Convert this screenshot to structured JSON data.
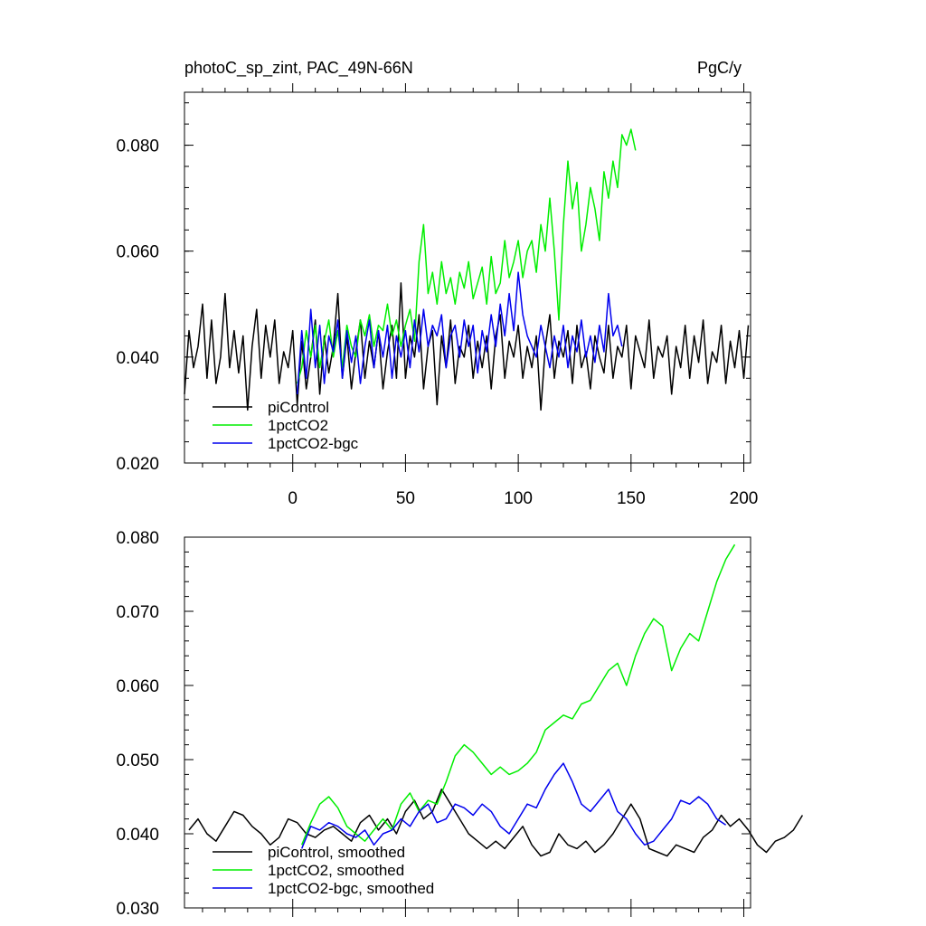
{
  "header": {
    "title": "photoC_sp_zint, PAC_49N-66N",
    "units": "PgC/y"
  },
  "chart_data": [
    {
      "type": "line",
      "panel": "top",
      "title": "photoC_sp_zint, PAC_49N-66N",
      "units": "PgC/y",
      "xlabel": "",
      "ylabel": "",
      "xlim": [
        -48,
        203
      ],
      "ylim": [
        0.02,
        0.09
      ],
      "x_ticks": [
        0,
        50,
        100,
        150,
        200
      ],
      "x_tick_labels": [
        "0",
        "50",
        "100",
        "150",
        "200"
      ],
      "y_ticks": [
        0.02,
        0.04,
        0.06,
        0.08
      ],
      "y_tick_labels": [
        "0.020",
        "0.040",
        "0.060",
        "0.080"
      ],
      "legend_position": "bottom-left",
      "grid": false,
      "series": [
        {
          "name": "piControl",
          "color": "#000000",
          "x_start": -48,
          "x_step": 2,
          "values": [
            0.033,
            0.045,
            0.038,
            0.042,
            0.05,
            0.036,
            0.047,
            0.035,
            0.04,
            0.052,
            0.038,
            0.045,
            0.037,
            0.044,
            0.03,
            0.042,
            0.049,
            0.036,
            0.046,
            0.04,
            0.047,
            0.035,
            0.041,
            0.038,
            0.045,
            0.031,
            0.043,
            0.034,
            0.04,
            0.047,
            0.033,
            0.044,
            0.037,
            0.042,
            0.052,
            0.036,
            0.044,
            0.034,
            0.041,
            0.047,
            0.036,
            0.043,
            0.038,
            0.045,
            0.034,
            0.041,
            0.046,
            0.036,
            0.054,
            0.036,
            0.044,
            0.04,
            0.048,
            0.034,
            0.042,
            0.045,
            0.031,
            0.044,
            0.038,
            0.047,
            0.035,
            0.042,
            0.04,
            0.046,
            0.036,
            0.043,
            0.038,
            0.044,
            0.034,
            0.044,
            0.048,
            0.036,
            0.043,
            0.04,
            0.046,
            0.036,
            0.042,
            0.038,
            0.044,
            0.03,
            0.042,
            0.048,
            0.036,
            0.043,
            0.04,
            0.045,
            0.035,
            0.046,
            0.038,
            0.041,
            0.034,
            0.044,
            0.04,
            0.037,
            0.046,
            0.036,
            0.042,
            0.04,
            0.046,
            0.034,
            0.044,
            0.041,
            0.038,
            0.047,
            0.036,
            0.042,
            0.04,
            0.044,
            0.033,
            0.042,
            0.038,
            0.046,
            0.036,
            0.044,
            0.039,
            0.047,
            0.035,
            0.041,
            0.039,
            0.046,
            0.035,
            0.043,
            0.038,
            0.045,
            0.036,
            0.046
          ]
        },
        {
          "name": "1pctCO2",
          "color": "#00ee00",
          "x_start": 2,
          "x_step": 2,
          "values": [
            0.035,
            0.038,
            0.045,
            0.04,
            0.046,
            0.038,
            0.043,
            0.047,
            0.04,
            0.045,
            0.038,
            0.046,
            0.042,
            0.04,
            0.047,
            0.044,
            0.048,
            0.042,
            0.046,
            0.045,
            0.05,
            0.044,
            0.047,
            0.042,
            0.046,
            0.049,
            0.043,
            0.058,
            0.065,
            0.052,
            0.056,
            0.05,
            0.058,
            0.052,
            0.055,
            0.05,
            0.056,
            0.053,
            0.058,
            0.051,
            0.054,
            0.057,
            0.05,
            0.059,
            0.052,
            0.054,
            0.062,
            0.055,
            0.058,
            0.062,
            0.055,
            0.06,
            0.062,
            0.056,
            0.065,
            0.06,
            0.07,
            0.06,
            0.047,
            0.065,
            0.077,
            0.068,
            0.073,
            0.06,
            0.065,
            0.072,
            0.068,
            0.062,
            0.075,
            0.07,
            0.077,
            0.072,
            0.082,
            0.08,
            0.083,
            0.079
          ]
        },
        {
          "name": "1pctCO2-bgc",
          "color": "#0000ee",
          "x_start": 2,
          "x_step": 2,
          "values": [
            0.033,
            0.045,
            0.036,
            0.049,
            0.038,
            0.046,
            0.035,
            0.044,
            0.041,
            0.047,
            0.036,
            0.045,
            0.039,
            0.044,
            0.035,
            0.042,
            0.047,
            0.038,
            0.045,
            0.04,
            0.046,
            0.036,
            0.044,
            0.04,
            0.045,
            0.038,
            0.047,
            0.041,
            0.049,
            0.042,
            0.046,
            0.044,
            0.048,
            0.038,
            0.044,
            0.046,
            0.04,
            0.047,
            0.042,
            0.046,
            0.037,
            0.045,
            0.041,
            0.048,
            0.042,
            0.05,
            0.044,
            0.052,
            0.045,
            0.056,
            0.048,
            0.044,
            0.042,
            0.04,
            0.046,
            0.042,
            0.038,
            0.044,
            0.04,
            0.046,
            0.038,
            0.044,
            0.041,
            0.047,
            0.04,
            0.044,
            0.039,
            0.046,
            0.041,
            0.052,
            0.044,
            0.046,
            0.042
          ]
        }
      ]
    },
    {
      "type": "line",
      "panel": "bottom",
      "title": "",
      "xlabel": "",
      "ylabel": "",
      "xlim": [
        -48,
        203
      ],
      "ylim": [
        0.03,
        0.08
      ],
      "x_ticks": [
        0,
        50,
        100,
        150,
        200
      ],
      "y_ticks": [
        0.03,
        0.04,
        0.05,
        0.06,
        0.07,
        0.08
      ],
      "y_tick_labels": [
        "0.030",
        "0.040",
        "0.050",
        "0.060",
        "0.070",
        "0.080"
      ],
      "legend_position": "bottom-left",
      "grid": false,
      "series": [
        {
          "name": "piControl, smoothed",
          "color": "#000000",
          "x_start": -46,
          "x_step": 4,
          "values": [
            0.0405,
            0.042,
            0.04,
            0.039,
            0.041,
            0.043,
            0.0425,
            0.041,
            0.04,
            0.0385,
            0.0395,
            0.042,
            0.0415,
            0.04,
            0.0395,
            0.0405,
            0.041,
            0.04,
            0.039,
            0.0415,
            0.0425,
            0.0405,
            0.042,
            0.04,
            0.043,
            0.0445,
            0.042,
            0.043,
            0.046,
            0.044,
            0.042,
            0.04,
            0.039,
            0.038,
            0.039,
            0.038,
            0.0395,
            0.041,
            0.0385,
            0.037,
            0.0375,
            0.04,
            0.0385,
            0.038,
            0.039,
            0.0375,
            0.0385,
            0.04,
            0.042,
            0.044,
            0.042,
            0.038,
            0.0375,
            0.037,
            0.0385,
            0.038,
            0.0375,
            0.0395,
            0.0405,
            0.0425,
            0.041,
            0.042,
            0.0405,
            0.0385,
            0.0375,
            0.039,
            0.0395,
            0.0405,
            0.0425
          ]
        },
        {
          "name": "1pctCO2, smoothed",
          "color": "#00ee00",
          "x_start": 4,
          "x_step": 4,
          "values": [
            0.0385,
            0.0415,
            0.044,
            0.045,
            0.0435,
            0.041,
            0.04,
            0.039,
            0.0405,
            0.042,
            0.0405,
            0.044,
            0.0455,
            0.043,
            0.0445,
            0.044,
            0.047,
            0.0505,
            0.052,
            0.051,
            0.0495,
            0.048,
            0.049,
            0.048,
            0.0485,
            0.0495,
            0.051,
            0.054,
            0.055,
            0.056,
            0.0555,
            0.0575,
            0.058,
            0.06,
            0.062,
            0.063,
            0.06,
            0.064,
            0.067,
            0.069,
            0.068,
            0.062,
            0.065,
            0.067,
            0.066,
            0.07,
            0.074,
            0.077,
            0.079
          ]
        },
        {
          "name": "1pctCO2-bgc, smoothed",
          "color": "#0000ee",
          "x_start": 4,
          "x_step": 4,
          "values": [
            0.038,
            0.041,
            0.0405,
            0.0415,
            0.041,
            0.04,
            0.0395,
            0.0405,
            0.0385,
            0.04,
            0.0405,
            0.042,
            0.041,
            0.043,
            0.044,
            0.0415,
            0.042,
            0.044,
            0.0435,
            0.0425,
            0.044,
            0.043,
            0.041,
            0.04,
            0.042,
            0.044,
            0.0435,
            0.046,
            0.048,
            0.0495,
            0.047,
            0.044,
            0.043,
            0.0445,
            0.046,
            0.043,
            0.042,
            0.04,
            0.0385,
            0.039,
            0.0405,
            0.042,
            0.0445,
            0.044,
            0.045,
            0.044,
            0.042,
            0.0412
          ]
        }
      ]
    }
  ]
}
